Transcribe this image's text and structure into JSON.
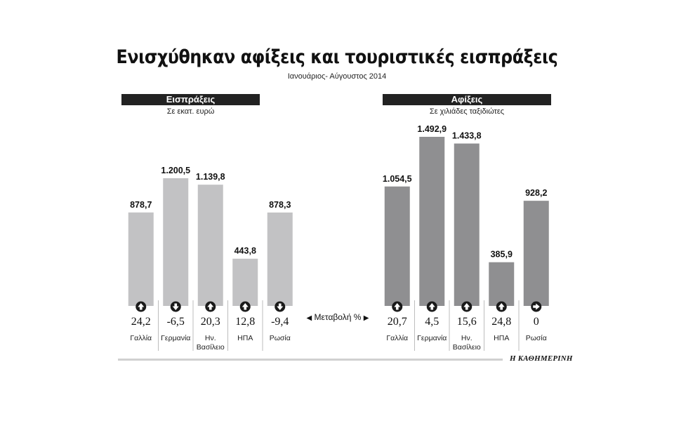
{
  "title": "Ενισχύθηκαν αφίξεις και τουριστικές εισπράξεις",
  "subtitle": "Ιανουάριος- Αύγουστος 2014",
  "middle_label": "Μεταβολή %",
  "brand": "Η ΚΑΘΗΜΕΡΙΝΗ",
  "chart_data": [
    {
      "type": "bar",
      "title": "Εισπράξεις",
      "ylabel": "Σε εκατ. ευρώ",
      "color": "#c2c2c4",
      "ylim": [
        0,
        1200.5
      ],
      "categories": [
        "Γαλλία",
        "Γερμανία",
        "Ην. Βασίλειο",
        "ΗΠΑ",
        "Ρωσία"
      ],
      "values": [
        878.7,
        1200.5,
        1139.8,
        443.8,
        878.3
      ],
      "value_labels": [
        "878,7",
        "1.200,5",
        "1.139,8",
        "443,8",
        "878,3"
      ],
      "change_labels": [
        "24,2",
        "-6,5",
        "20,3",
        "12,8",
        "-9,4"
      ],
      "change_directions": [
        "up",
        "down",
        "up",
        "up",
        "down"
      ]
    },
    {
      "type": "bar",
      "title": "Αφίξεις",
      "ylabel": "Σε χιλιάδες ταξιδιώτες",
      "color": "#8f8f91",
      "ylim": [
        0,
        1492.9
      ],
      "categories": [
        "Γαλλία",
        "Γερμανία",
        "Ην. Βασίλειο",
        "ΗΠΑ",
        "Ρωσία"
      ],
      "values": [
        1054.5,
        1492.9,
        1433.8,
        385.9,
        928.2
      ],
      "value_labels": [
        "1.054,5",
        "1.492,9",
        "1.433,8",
        "385,9",
        "928,2"
      ],
      "change_labels": [
        "20,7",
        "4,5",
        "15,6",
        "24,8",
        "0"
      ],
      "change_directions": [
        "up",
        "up",
        "up",
        "up",
        "right"
      ]
    }
  ]
}
